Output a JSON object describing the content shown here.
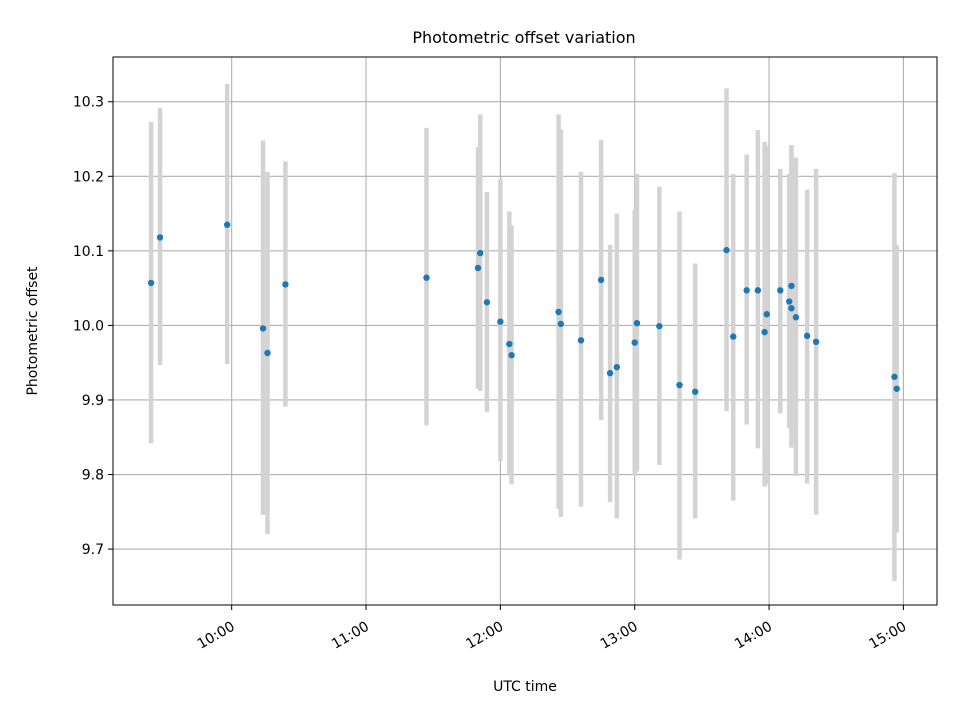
{
  "chart_data": {
    "type": "scatter",
    "title": "Photometric offset variation",
    "xlabel": "UTC time",
    "ylabel": "Photometric offset",
    "xlim": [
      "09:07",
      "15:15"
    ],
    "ylim": [
      9.625,
      10.36
    ],
    "xticks": [
      "10:00",
      "11:00",
      "12:00",
      "13:00",
      "14:00",
      "15:00"
    ],
    "yticks": [
      "9.7",
      "9.8",
      "9.9",
      "10.0",
      "10.1",
      "10.2",
      "10.3"
    ],
    "grid": true,
    "colors": {
      "points": "#1f77b4",
      "errorbars": "#d3d3d3",
      "grid": "#b0b0b0"
    },
    "points": [
      {
        "t": "09:24",
        "y": 10.057,
        "lo": 9.842,
        "hi": 10.273
      },
      {
        "t": "09:28",
        "y": 10.118,
        "lo": 9.947,
        "hi": 10.292
      },
      {
        "t": "09:58",
        "y": 10.135,
        "lo": 9.948,
        "hi": 10.324
      },
      {
        "t": "10:14",
        "y": 9.996,
        "lo": 9.746,
        "hi": 10.248
      },
      {
        "t": "10:16",
        "y": 9.963,
        "lo": 9.72,
        "hi": 10.206
      },
      {
        "t": "10:24",
        "y": 10.055,
        "lo": 9.891,
        "hi": 10.22
      },
      {
        "t": "11:27",
        "y": 10.064,
        "lo": 9.866,
        "hi": 10.265
      },
      {
        "t": "11:50",
        "y": 10.077,
        "lo": 9.915,
        "hi": 10.239
      },
      {
        "t": "11:51",
        "y": 10.097,
        "lo": 9.912,
        "hi": 10.283
      },
      {
        "t": "11:54",
        "y": 10.031,
        "lo": 9.884,
        "hi": 10.179
      },
      {
        "t": "12:00",
        "y": 10.005,
        "lo": 9.818,
        "hi": 10.196
      },
      {
        "t": "12:04",
        "y": 9.975,
        "lo": 9.8,
        "hi": 10.153
      },
      {
        "t": "12:05",
        "y": 9.96,
        "lo": 9.787,
        "hi": 10.134
      },
      {
        "t": "12:26",
        "y": 10.018,
        "lo": 9.754,
        "hi": 10.283
      },
      {
        "t": "12:27",
        "y": 10.002,
        "lo": 9.743,
        "hi": 10.263
      },
      {
        "t": "12:36",
        "y": 9.98,
        "lo": 9.757,
        "hi": 10.206
      },
      {
        "t": "12:45",
        "y": 10.061,
        "lo": 9.873,
        "hi": 10.249
      },
      {
        "t": "12:49",
        "y": 9.936,
        "lo": 9.763,
        "hi": 10.108
      },
      {
        "t": "12:52",
        "y": 9.944,
        "lo": 9.741,
        "hi": 10.15
      },
      {
        "t": "13:00",
        "y": 9.977,
        "lo": 9.799,
        "hi": 10.155
      },
      {
        "t": "13:01",
        "y": 10.003,
        "lo": 9.804,
        "hi": 10.203
      },
      {
        "t": "13:11",
        "y": 9.999,
        "lo": 9.813,
        "hi": 10.186
      },
      {
        "t": "13:20",
        "y": 9.92,
        "lo": 9.686,
        "hi": 10.153
      },
      {
        "t": "13:27",
        "y": 9.911,
        "lo": 9.741,
        "hi": 10.083
      },
      {
        "t": "13:41",
        "y": 10.101,
        "lo": 9.885,
        "hi": 10.318
      },
      {
        "t": "13:44",
        "y": 9.985,
        "lo": 9.765,
        "hi": 10.203
      },
      {
        "t": "13:50",
        "y": 10.047,
        "lo": 9.867,
        "hi": 10.229
      },
      {
        "t": "13:55",
        "y": 10.047,
        "lo": 9.835,
        "hi": 10.262
      },
      {
        "t": "13:58",
        "y": 9.991,
        "lo": 9.784,
        "hi": 10.246
      },
      {
        "t": "13:59",
        "y": 10.015,
        "lo": 9.787,
        "hi": 10.241
      },
      {
        "t": "14:05",
        "y": 10.047,
        "lo": 9.882,
        "hi": 10.21
      },
      {
        "t": "14:09",
        "y": 10.032,
        "lo": 9.862,
        "hi": 10.203
      },
      {
        "t": "14:10",
        "y": 10.053,
        "lo": 9.863,
        "hi": 10.242
      },
      {
        "t": "14:10",
        "y": 10.023,
        "lo": 9.836,
        "hi": 10.23
      },
      {
        "t": "14:12",
        "y": 10.011,
        "lo": 9.798,
        "hi": 10.225
      },
      {
        "t": "14:17",
        "y": 9.986,
        "lo": 9.788,
        "hi": 10.182
      },
      {
        "t": "14:21",
        "y": 9.978,
        "lo": 9.746,
        "hi": 10.21
      },
      {
        "t": "14:56",
        "y": 9.931,
        "lo": 9.657,
        "hi": 10.204
      },
      {
        "t": "14:57",
        "y": 9.915,
        "lo": 9.722,
        "hi": 10.108
      }
    ]
  }
}
